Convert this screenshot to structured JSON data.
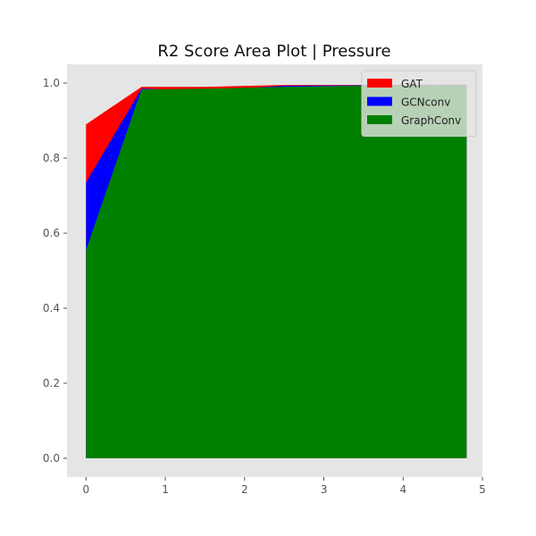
{
  "chart_data": {
    "type": "area",
    "title": "R2 Score Area Plot | Pressure",
    "xlabel": "",
    "ylabel": "",
    "xlim": [
      -0.24,
      5.0
    ],
    "ylim": [
      -0.05,
      1.05
    ],
    "xticks": [
      "0",
      "1",
      "2",
      "3",
      "4",
      "5"
    ],
    "yticks": [
      "0.0",
      "0.2",
      "0.4",
      "0.6",
      "0.8",
      "1.0"
    ],
    "grid": false,
    "background": "#e5e5e5",
    "legend_position": "top-right",
    "x": [
      0,
      0.7,
      1.5,
      2.5,
      3.5,
      4.8
    ],
    "series": [
      {
        "name": "GAT",
        "color": "#ff0000",
        "values": [
          0.89,
          0.99,
          0.99,
          0.995,
          0.995,
          0.996
        ]
      },
      {
        "name": "GCNconv",
        "color": "#0000ff",
        "values": [
          0.735,
          0.985,
          0.98,
          0.993,
          0.994,
          0.995
        ]
      },
      {
        "name": "GraphConv",
        "color": "#008000",
        "values": [
          0.555,
          0.983,
          0.985,
          0.99,
          0.993,
          0.995
        ]
      }
    ]
  }
}
